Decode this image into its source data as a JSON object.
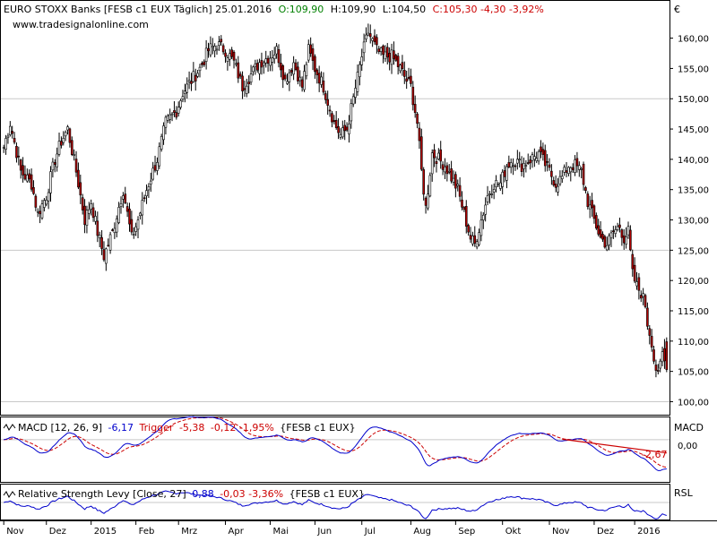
{
  "header": {
    "title": "EURO STOXX Banks [FESB c1 EUX  Täglich] 25.01.2016",
    "open": "O:109,90",
    "high": "H:109,90",
    "low": "L:104,50",
    "close_change": "C:105,30 -4,30 -3,92%",
    "source": "www.tradesignalonline.com"
  },
  "colors": {
    "frame": "#000000",
    "grid": "#c8c8c8",
    "up_candle": "#ffffff",
    "down_candle": "#b00000",
    "close_text": "#cc0000",
    "open_text": "#008000",
    "macd_line": "#0000cc",
    "trigger_line": "#cc0000",
    "rsl_line": "#0000cc"
  },
  "chart_data": [
    {
      "type": "candlestick",
      "name": "EURO STOXX Banks",
      "currency_label": "€",
      "ylim": [
        98,
        166
      ],
      "yticks": [
        "160,00",
        "155,00",
        "150,00",
        "145,00",
        "140,00",
        "135,00",
        "130,00",
        "125,00",
        "120,00",
        "115,00",
        "110,00",
        "105,00",
        "100,00"
      ],
      "ytick_values": [
        160,
        155,
        150,
        145,
        140,
        135,
        130,
        125,
        120,
        115,
        110,
        105,
        100
      ],
      "months": [
        "Nov",
        "Dez",
        "2015",
        "Feb",
        "Mrz",
        "Apr",
        "Mai",
        "Jun",
        "Jul",
        "Aug",
        "Sep",
        "Okt",
        "Nov",
        "Dez",
        "2016"
      ],
      "month_start_index": [
        0,
        20,
        41,
        62,
        82,
        104,
        125,
        146,
        168,
        191,
        212,
        234,
        256,
        277,
        296
      ],
      "total_bars": 312,
      "close_anchors": [
        [
          0,
          142
        ],
        [
          3,
          146
        ],
        [
          8,
          138
        ],
        [
          13,
          136
        ],
        [
          16,
          131
        ],
        [
          20,
          134
        ],
        [
          24,
          140
        ],
        [
          27,
          143
        ],
        [
          30,
          145
        ],
        [
          34,
          138
        ],
        [
          38,
          130
        ],
        [
          41,
          133
        ],
        [
          44,
          128
        ],
        [
          47,
          124
        ],
        [
          51,
          128
        ],
        [
          56,
          135
        ],
        [
          60,
          127
        ],
        [
          63,
          130
        ],
        [
          67,
          135
        ],
        [
          72,
          140
        ],
        [
          76,
          146
        ],
        [
          81,
          148
        ],
        [
          84,
          151
        ],
        [
          88,
          153
        ],
        [
          92,
          155
        ],
        [
          96,
          158
        ],
        [
          100,
          159
        ],
        [
          104,
          158
        ],
        [
          108,
          156
        ],
        [
          112,
          152
        ],
        [
          116,
          154
        ],
        [
          120,
          156
        ],
        [
          125,
          157
        ],
        [
          128,
          158
        ],
        [
          132,
          153
        ],
        [
          136,
          156
        ],
        [
          140,
          152
        ],
        [
          143,
          158
        ],
        [
          146,
          155
        ],
        [
          150,
          152
        ],
        [
          155,
          146
        ],
        [
          158,
          144
        ],
        [
          161,
          145
        ],
        [
          164,
          150
        ],
        [
          168,
          157
        ],
        [
          171,
          161
        ],
        [
          175,
          158
        ],
        [
          178,
          157
        ],
        [
          182,
          157
        ],
        [
          186,
          155
        ],
        [
          189,
          153
        ],
        [
          191,
          152
        ],
        [
          194,
          146
        ],
        [
          196,
          138
        ],
        [
          198,
          132
        ],
        [
          201,
          141
        ],
        [
          204,
          140
        ],
        [
          207,
          139
        ],
        [
          210,
          137
        ],
        [
          213,
          135
        ],
        [
          216,
          131
        ],
        [
          219,
          127
        ],
        [
          221,
          126
        ],
        [
          224,
          130
        ],
        [
          227,
          134
        ],
        [
          230,
          136
        ],
        [
          233,
          136
        ],
        [
          236,
          139
        ],
        [
          239,
          140
        ],
        [
          243,
          139
        ],
        [
          247,
          140
        ],
        [
          251,
          141
        ],
        [
          256,
          138
        ],
        [
          259,
          136
        ],
        [
          262,
          137
        ],
        [
          265,
          139
        ],
        [
          268,
          139
        ],
        [
          271,
          138
        ],
        [
          274,
          133
        ],
        [
          277,
          130
        ],
        [
          280,
          127
        ],
        [
          283,
          126
        ],
        [
          286,
          128
        ],
        [
          289,
          129
        ],
        [
          291,
          127
        ],
        [
          293,
          128
        ],
        [
          295,
          121
        ],
        [
          297,
          119
        ],
        [
          299,
          118
        ],
        [
          301,
          116
        ],
        [
          302,
          113
        ],
        [
          304,
          110
        ],
        [
          305,
          107
        ],
        [
          307,
          104
        ],
        [
          309,
          108
        ],
        [
          311,
          105.3
        ]
      ]
    },
    {
      "type": "line",
      "name": "MACD",
      "legend": "MACD [12, 26, 9]",
      "value": "-6,17",
      "trigger_label": "Trigger",
      "trigger_value": "-5,38",
      "diff": "-0,12 -1,95%",
      "instrument": "{FESB c1 EUX}",
      "panel_label": "MACD",
      "ylim": [
        -8.5,
        4.5
      ],
      "ytick_label": "0,00",
      "ytick_value": 0,
      "trend_label": "-2,67"
    },
    {
      "type": "line",
      "name": "RSL",
      "legend": "Relative Strength Levy [Close, 27]",
      "value": "0,88",
      "diff": "-0,03 -3,36%",
      "instrument": "{FESB c1 EUX}",
      "panel_label": "RSL"
    }
  ]
}
